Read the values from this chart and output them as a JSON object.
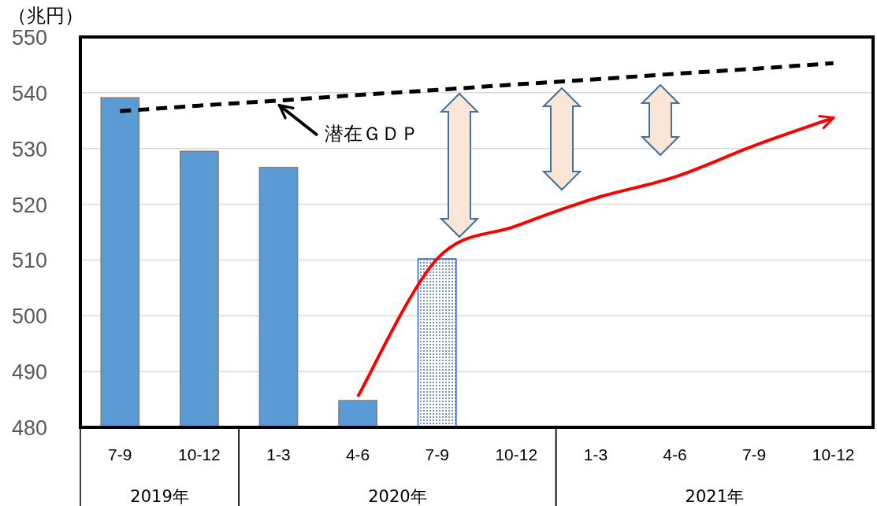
{
  "chart_data": {
    "type": "bar",
    "ylabel": "（兆円）",
    "categories": [
      "7-9",
      "10-12",
      "1-3",
      "4-6",
      "7-9",
      "10-12",
      "1-3",
      "4-6",
      "7-9",
      "10-12"
    ],
    "values": [
      539.1,
      529.5,
      526.6,
      484.8,
      510.2,
      null,
      null,
      null,
      null,
      null
    ],
    "colors": [
      "#5b9bd5",
      "#5b9bd5",
      "#5b9bd5",
      "#5b9bd5",
      "#2f5fd0",
      null,
      null,
      null,
      null,
      null
    ],
    "series": [
      {
        "type": "line",
        "color": "#000000",
        "line_style": "dashed",
        "values": [
          536.7,
          537.7,
          538.6,
          539.6,
          540.5,
          541.5,
          542.4,
          543.4,
          544.3,
          545.3
        ]
      },
      {
        "type": "line",
        "color": "#ff0000",
        "line_style": "solid",
        "values": [
          null,
          null,
          null,
          485.5,
          510.2,
          516.1,
          521.1,
          524.9,
          530.5,
          535.5
        ]
      }
    ],
    "ylim": [
      480,
      550
    ],
    "yticks": [
      480,
      490,
      500,
      510,
      520,
      530,
      540,
      550
    ],
    "grid": "y",
    "annotations": [
      {
        "text": "潜在ＧＤＰ",
        "x": "1-3",
        "y": 538.6
      },
      "2019年",
      "2020年",
      "2021年"
    ]
  }
}
